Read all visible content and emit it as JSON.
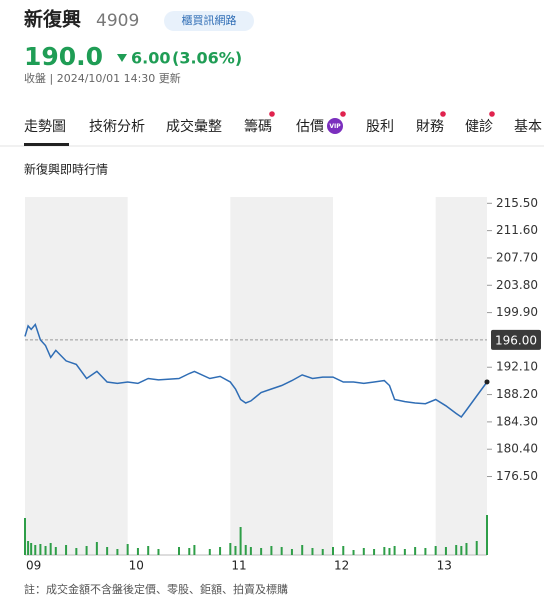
{
  "header": {
    "name": "新復興",
    "code": "4909",
    "badge": "櫃買訊網路",
    "price": "190.0",
    "change": "6.00",
    "change_pct": "(3.06%)",
    "status": "收盤 | 2024/10/01 14:30 更新"
  },
  "tabs": [
    "走勢圖",
    "技術分析",
    "成交彙整",
    "籌碼",
    "估價",
    "股利",
    "財務",
    "健診",
    "基本"
  ],
  "vip": "VIP",
  "section_title": "新復興即時行情",
  "note": "註：成交金額不含盤後定價、零股、鉅額、拍賣及標購",
  "chart_data": {
    "type": "line",
    "x": [
      9.0,
      9.03,
      9.06,
      9.1,
      9.15,
      9.2,
      9.25,
      9.3,
      9.4,
      9.5,
      9.6,
      9.7,
      9.8,
      9.9,
      10.0,
      10.1,
      10.2,
      10.3,
      10.5,
      10.6,
      10.65,
      10.8,
      10.9,
      11.0,
      11.05,
      11.1,
      11.15,
      11.2,
      11.3,
      11.4,
      11.5,
      11.6,
      11.7,
      11.8,
      11.9,
      12.0,
      12.1,
      12.2,
      12.3,
      12.4,
      12.5,
      12.55,
      12.6,
      12.7,
      12.8,
      12.9,
      13.0,
      13.1,
      13.2,
      13.25,
      13.3,
      13.4,
      13.5
    ],
    "series": [
      {
        "color": "#2f6db5",
        "values": [
          196.5,
          198,
          197.5,
          198.2,
          196,
          195.2,
          193.5,
          194.5,
          193,
          192.5,
          190.5,
          191.5,
          190,
          189.8,
          190,
          189.8,
          190.5,
          190.3,
          190.5,
          191.2,
          191.5,
          190.5,
          190.8,
          190,
          189,
          187.5,
          187,
          187.3,
          188.5,
          189,
          189.5,
          190.2,
          191,
          190.5,
          190.7,
          190.7,
          190,
          190,
          189.8,
          190,
          190.2,
          189.5,
          187.5,
          187.2,
          187,
          186.9,
          187.5,
          186.6,
          185.5,
          185,
          186,
          188,
          190
        ]
      }
    ],
    "volume": {
      "color": "#2e9e48",
      "values": [
        37,
        14,
        12,
        10,
        11,
        9,
        12,
        8,
        10,
        7,
        9,
        13,
        8,
        6,
        11,
        7,
        9,
        6,
        8,
        7,
        10,
        6,
        8,
        12,
        9,
        28,
        10,
        8,
        7,
        9,
        8,
        6,
        10,
        7,
        6,
        8,
        9,
        5,
        7,
        6,
        8,
        7,
        9,
        6,
        8,
        7,
        9,
        8,
        10,
        9,
        12,
        14,
        40
      ]
    },
    "xlim": [
      9,
      13.5
    ],
    "xticks": [
      {
        "value": 9,
        "label": "09"
      },
      {
        "value": 10,
        "label": "10"
      },
      {
        "value": 11,
        "label": "11"
      },
      {
        "value": 12,
        "label": "12"
      },
      {
        "value": 13,
        "label": "13"
      }
    ],
    "ylim": [
      165.3,
      216.4
    ],
    "yticks": [
      {
        "value": 215.5,
        "label": "215.50"
      },
      {
        "value": 211.6,
        "label": "211.60"
      },
      {
        "value": 207.7,
        "label": "207.70"
      },
      {
        "value": 203.8,
        "label": "203.80"
      },
      {
        "value": 199.9,
        "label": "199.90"
      },
      {
        "value": 192.1,
        "label": "192.10"
      },
      {
        "value": 188.2,
        "label": "188.20"
      },
      {
        "value": 184.3,
        "label": "184.30"
      },
      {
        "value": 180.4,
        "label": "180.40"
      },
      {
        "value": 176.5,
        "label": "176.50"
      }
    ],
    "reference": {
      "value": 196,
      "label": "196.00"
    }
  }
}
